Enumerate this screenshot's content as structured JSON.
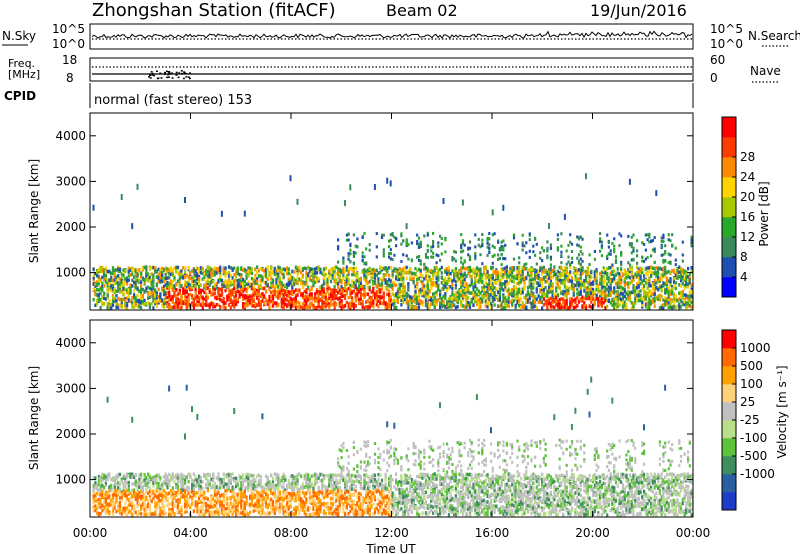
{
  "header": {
    "station": "Zhongshan Station (fitACF)",
    "beam": "Beam 02",
    "date": "19/Jun/2016"
  },
  "strips": {
    "nsky_label": "N.Sky",
    "nsky_ticks": [
      "10^5",
      "10^0"
    ],
    "nsearch_label": "N.Search",
    "nsearch_ticks": [
      "10^5",
      "10^0"
    ],
    "freq_label_1": "Freq.",
    "freq_label_2": "[MHz]",
    "freq_ticks": [
      "18",
      "8"
    ],
    "nave_label": "Nave",
    "nave_ticks": [
      "60",
      "0"
    ],
    "cpid_label": "CPID",
    "cpid_text": "normal (fast stereo) 153"
  },
  "colors": {
    "power": [
      "#0000ff",
      "#1f4fb0",
      "#3a8a5a",
      "#2aa82a",
      "#a8c800",
      "#ffd400",
      "#ff8a00",
      "#ff3c00",
      "#ff0000"
    ],
    "velocity": [
      "#ff0000",
      "#ff6a00",
      "#ffa000",
      "#ffd27a",
      "#c0c0c0",
      "#b8e08a",
      "#5ec23a",
      "#3e8e5e",
      "#2a5fa0",
      "#1f3cc8"
    ]
  },
  "chart_data": [
    {
      "type": "heatmap",
      "name": "power",
      "ylabel": "Slant Range [km]",
      "xlabel": "Time UT",
      "xticks": [
        "00:00",
        "04:00",
        "08:00",
        "12:00",
        "16:00",
        "20:00",
        "00:00"
      ],
      "yticks": [
        "1000",
        "2000",
        "3000",
        "4000"
      ],
      "ylim": [
        180,
        4500
      ],
      "xlim": [
        0,
        24
      ],
      "colorbar": {
        "label": "Power [dB]",
        "ticks": [
          "4",
          "8",
          "12",
          "16",
          "20",
          "24",
          "28"
        ],
        "range": [
          0,
          30
        ]
      }
    },
    {
      "type": "heatmap",
      "name": "velocity",
      "ylabel": "Slant Range [km]",
      "xlabel": "Time UT",
      "xticks": [
        "00:00",
        "04:00",
        "08:00",
        "12:00",
        "16:00",
        "20:00",
        "00:00"
      ],
      "yticks": [
        "1000",
        "2000",
        "3000",
        "4000"
      ],
      "ylim": [
        180,
        4500
      ],
      "xlim": [
        0,
        24
      ],
      "colorbar": {
        "label": "Velocity [m s⁻¹]",
        "ticks": [
          "1000",
          "500",
          "100",
          "25",
          "-25",
          "-100",
          "-500",
          "-1000"
        ]
      }
    }
  ]
}
